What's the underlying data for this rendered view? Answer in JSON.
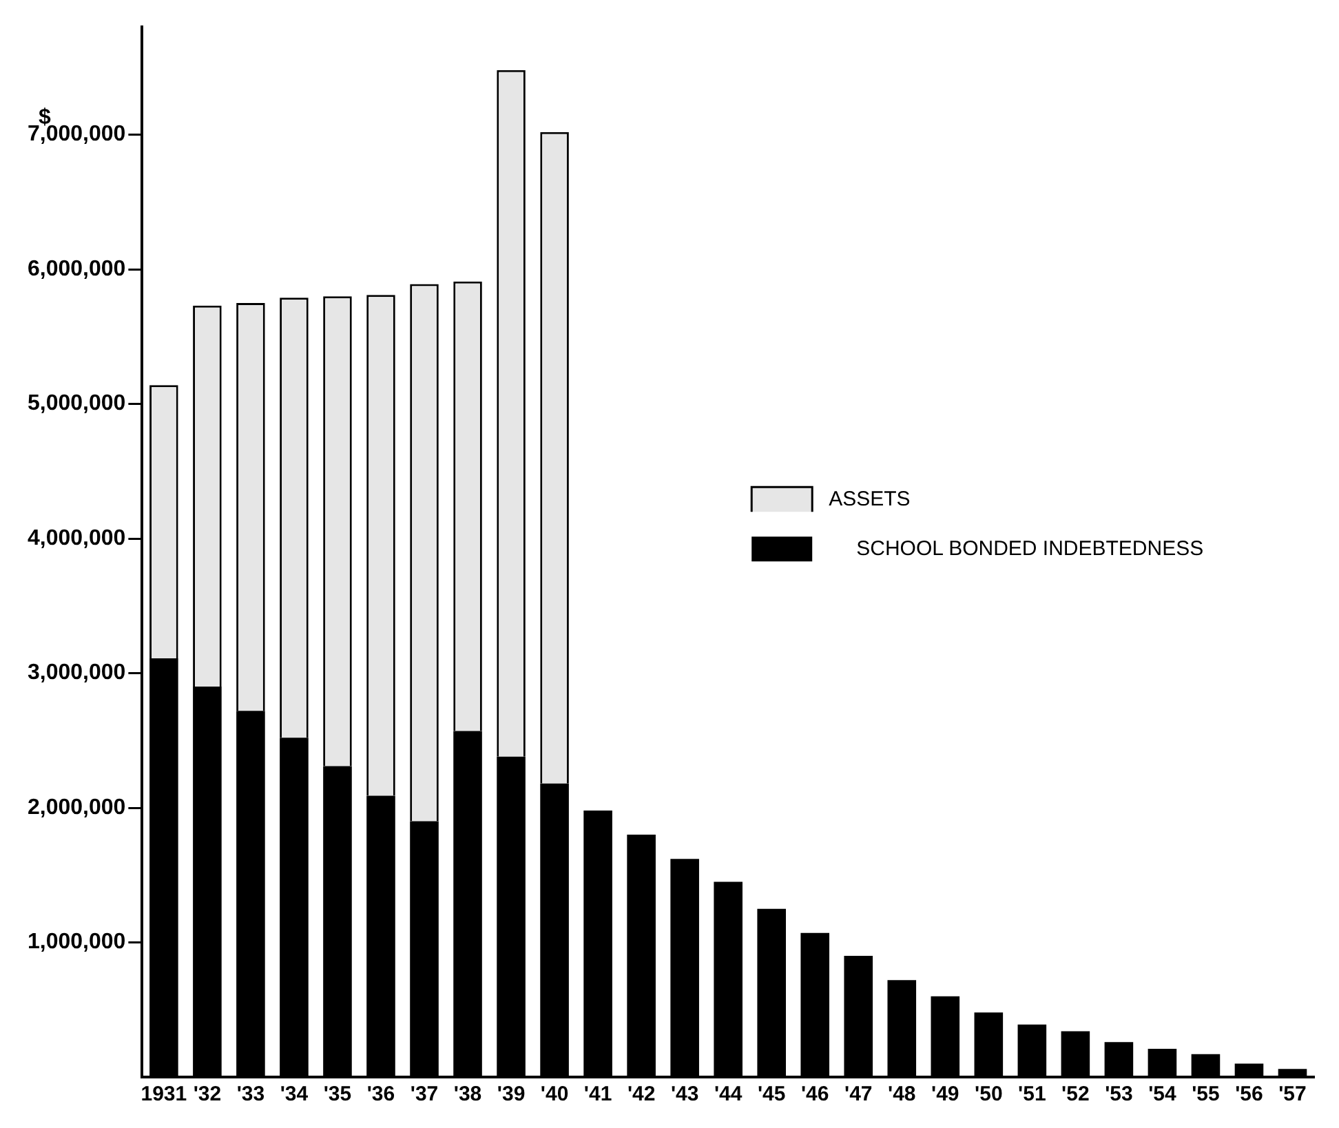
{
  "chart_data": {
    "type": "bar",
    "stacked": true,
    "ylabel": "$",
    "categories": [
      "1931",
      "'32",
      "'33",
      "'34",
      "'35",
      "'36",
      "'37",
      "'38",
      "'39",
      "'40",
      "'41",
      "'42",
      "'43",
      "'44",
      "'45",
      "'46",
      "'47",
      "'48",
      "'49",
      "'50",
      "'51",
      "'52",
      "'53",
      "'54",
      "'55",
      "'56",
      "'57"
    ],
    "series": [
      {
        "name": "SCHOOL BONDED INDEBTEDNESS",
        "color": "#000000",
        "values": [
          3110000,
          2900000,
          2720000,
          2520000,
          2310000,
          2090000,
          1900000,
          2570000,
          2380000,
          2180000,
          1980000,
          1800000,
          1620000,
          1450000,
          1250000,
          1070000,
          900000,
          720000,
          600000,
          480000,
          390000,
          340000,
          260000,
          210000,
          170000,
          100000,
          60000
        ]
      },
      {
        "name": "ASSETS",
        "color": "#e6e6e6",
        "values": [
          2030000,
          2830000,
          3030000,
          3270000,
          3490000,
          3720000,
          3990000,
          3340000,
          5100000,
          4840000,
          null,
          null,
          null,
          null,
          null,
          null,
          null,
          null,
          null,
          null,
          null,
          null,
          null,
          null,
          null,
          null,
          null
        ]
      }
    ],
    "ylim": [
      0,
      7800000
    ],
    "yticks": [
      {
        "value": 1000000,
        "label": "1,000,000"
      },
      {
        "value": 2000000,
        "label": "2,000,000"
      },
      {
        "value": 3000000,
        "label": "3,000,000"
      },
      {
        "value": 4000000,
        "label": "4,000,000"
      },
      {
        "value": 5000000,
        "label": "5,000,000"
      },
      {
        "value": 6000000,
        "label": "6,000,000"
      },
      {
        "value": 7000000,
        "label": "7,000,000"
      }
    ],
    "grid": false,
    "legend": "right"
  }
}
